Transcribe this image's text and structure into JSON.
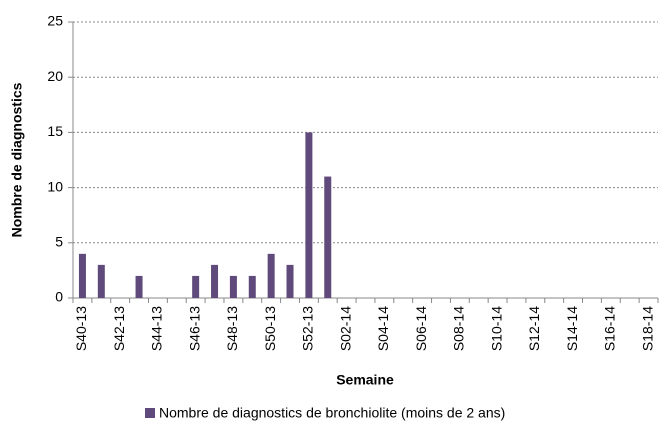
{
  "chart_data": {
    "type": "bar",
    "y_label": "Nombre de diagnostics",
    "x_label": "Semaine",
    "categories": [
      "S40-13",
      null,
      "S42-13",
      null,
      "S44-13",
      null,
      "S46-13",
      null,
      "S48-13",
      null,
      "S50-13",
      null,
      "S52-13",
      null,
      "S02-14",
      null,
      "S04-14",
      null,
      "S06-14",
      null,
      "S08-14",
      null,
      "S10-14",
      null,
      "S12-14",
      null,
      "S14-14",
      null,
      "S16-14",
      null,
      "S18-14"
    ],
    "series": [
      {
        "name": "Nombre de diagnostics de bronchiolite (moins de 2 ans)",
        "color": "#604a7b",
        "values": [
          4,
          3,
          0,
          2,
          0,
          0,
          2,
          3,
          2,
          2,
          4,
          3,
          15,
          11,
          null,
          null,
          null,
          null,
          null,
          null,
          null,
          null,
          null,
          null,
          null,
          null,
          null,
          null,
          null,
          null,
          null
        ]
      }
    ],
    "ylim": [
      0,
      25
    ],
    "yticks": [
      0,
      5,
      10,
      15,
      20,
      25
    ],
    "grid": true,
    "legend": "bottom"
  }
}
